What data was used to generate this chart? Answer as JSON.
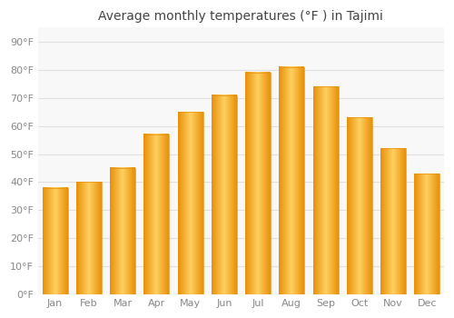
{
  "months": [
    "Jan",
    "Feb",
    "Mar",
    "Apr",
    "May",
    "Jun",
    "Jul",
    "Aug",
    "Sep",
    "Oct",
    "Nov",
    "Dec"
  ],
  "values": [
    38,
    40,
    45,
    57,
    65,
    71,
    79,
    81,
    74,
    63,
    52,
    43
  ],
  "bar_color_face": "#FFA500",
  "bar_color_light": "#FFD050",
  "bar_color_edge": "#E8900A",
  "title": "Average monthly temperatures (°F ) in Tajimi",
  "ylim": [
    0,
    95
  ],
  "yticks": [
    0,
    10,
    20,
    30,
    40,
    50,
    60,
    70,
    80,
    90
  ],
  "ytick_labels": [
    "0°F",
    "10°F",
    "20°F",
    "30°F",
    "40°F",
    "50°F",
    "60°F",
    "70°F",
    "80°F",
    "90°F"
  ],
  "background_color": "#ffffff",
  "plot_bg_color": "#f8f8f8",
  "grid_color": "#e0e0e0",
  "title_fontsize": 10,
  "tick_fontsize": 8,
  "tick_color": "#888888",
  "bar_width": 0.75,
  "figsize": [
    5.0,
    3.5
  ],
  "dpi": 100
}
